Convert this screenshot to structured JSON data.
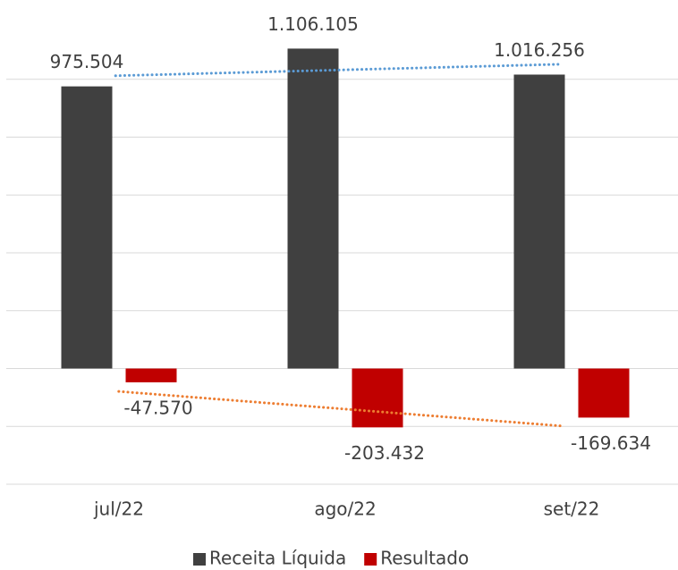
{
  "chart_data": {
    "type": "bar",
    "categories": [
      "jul/22",
      "ago/22",
      "set/22"
    ],
    "series": [
      {
        "name": "Receita Líquida",
        "color": "#404040",
        "values": [
          975504,
          1106105,
          1016256
        ],
        "value_labels": [
          "975.504",
          "1.106.105",
          "1.016.256"
        ],
        "trendline": true,
        "trendline_color": "#5b9bd5"
      },
      {
        "name": "Resultado",
        "color": "#c00000",
        "values": [
          -47570,
          -203432,
          -169634
        ],
        "value_labels": [
          "-47.570",
          "-203.432",
          "-169.634"
        ],
        "trendline": true,
        "trendline_color": "#ed7d31"
      }
    ],
    "ylim": [
      -400000,
      1200000
    ],
    "yticks": [
      -400000,
      -200000,
      0,
      200000,
      400000,
      600000,
      800000,
      1000000
    ],
    "grid": true,
    "legend": "bottom"
  }
}
